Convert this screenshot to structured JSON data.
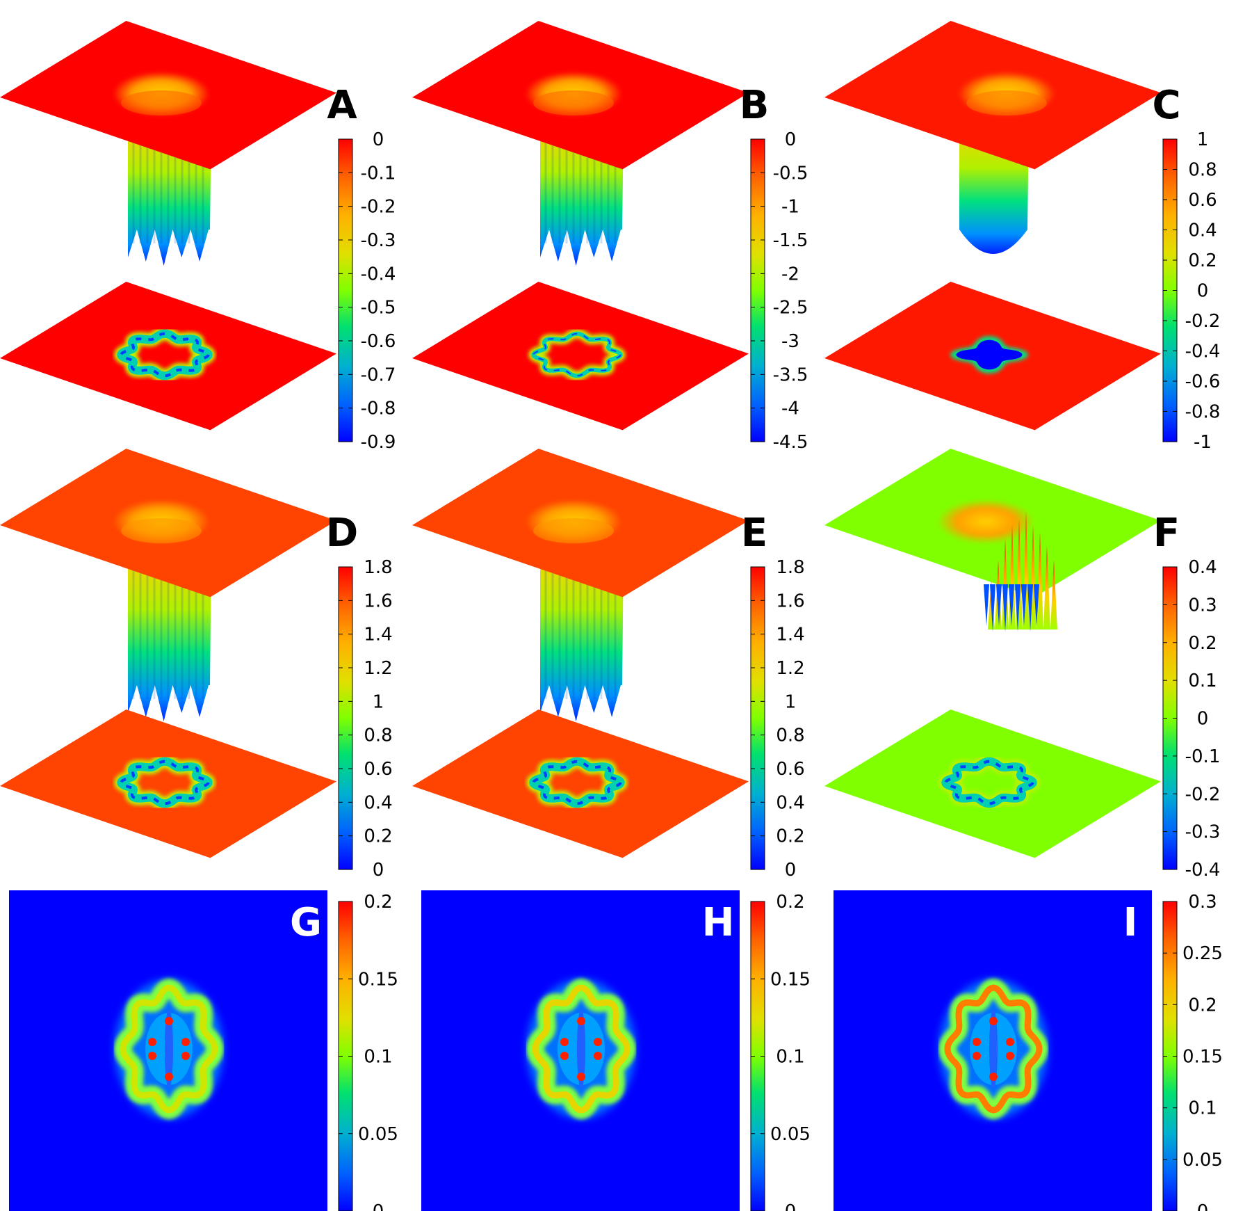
{
  "chart_data": [
    {
      "type": "surface",
      "panel": "A",
      "colorbar": {
        "min": -0.9,
        "max": 0,
        "ticks": [
          "0",
          "-0.1",
          "-0.2",
          "-0.3",
          "-0.4",
          "-0.5",
          "-0.6",
          "-0.7",
          "-0.8",
          "-0.9"
        ]
      },
      "surface": {
        "base_level": 0.0,
        "feature": "well",
        "floor": -0.9,
        "ring": "scalloped"
      }
    },
    {
      "type": "surface",
      "panel": "B",
      "colorbar": {
        "min": -4.5,
        "max": 0,
        "ticks": [
          "0",
          "-0.5",
          "-1",
          "-1.5",
          "-2",
          "-2.5",
          "-3",
          "-3.5",
          "-4",
          "-4.5"
        ]
      },
      "surface": {
        "base_level": 0.0,
        "feature": "well",
        "floor": -4.5,
        "ring": "thin-scalloped"
      }
    },
    {
      "type": "surface",
      "panel": "C",
      "colorbar": {
        "min": -1,
        "max": 1,
        "ticks": [
          "1",
          "0.8",
          "0.6",
          "0.4",
          "0.2",
          "0",
          "-0.2",
          "-0.4",
          "-0.6",
          "-0.8",
          "-1"
        ]
      },
      "surface": {
        "base_level": 0.94,
        "feature": "well",
        "floor": -1,
        "ring": "filled-cross"
      }
    },
    {
      "type": "surface",
      "panel": "D",
      "colorbar": {
        "min": 0,
        "max": 1.8,
        "ticks": [
          "1.8",
          "1.6",
          "1.4",
          "1.2",
          "1",
          "0.8",
          "0.6",
          "0.4",
          "0.2",
          "0"
        ]
      },
      "surface": {
        "base_level": 1.65,
        "feature": "well",
        "floor": 0,
        "ring": "scalloped"
      }
    },
    {
      "type": "surface",
      "panel": "E",
      "colorbar": {
        "min": 0,
        "max": 1.8,
        "ticks": [
          "1.8",
          "1.6",
          "1.4",
          "1.2",
          "1",
          "0.8",
          "0.6",
          "0.4",
          "0.2",
          "0"
        ]
      },
      "surface": {
        "base_level": 1.65,
        "feature": "well",
        "floor": 0,
        "ring": "scalloped"
      }
    },
    {
      "type": "surface",
      "panel": "F",
      "colorbar": {
        "min": -0.4,
        "max": 0.4,
        "ticks": [
          "0.4",
          "0.3",
          "0.2",
          "0.1",
          "0",
          "-0.1",
          "-0.2",
          "-0.3",
          "-0.4"
        ]
      },
      "surface": {
        "base_level": 0.0,
        "feature": "spikes",
        "peak": 0.4,
        "floor": -0.4,
        "ring": "scalloped"
      }
    },
    {
      "type": "heatmap",
      "panel": "G",
      "colorbar": {
        "min": 0,
        "max": 0.2,
        "ticks": [
          "0.2",
          "0.15",
          "0.1",
          "0.05",
          "0"
        ]
      },
      "pattern": {
        "background": 0,
        "ring": 0.12,
        "hotspots": 0.2
      }
    },
    {
      "type": "heatmap",
      "panel": "H",
      "colorbar": {
        "min": 0,
        "max": 0.2,
        "ticks": [
          "0.2",
          "0.15",
          "0.1",
          "0.05",
          "0"
        ]
      },
      "pattern": {
        "background": 0,
        "ring": 0.13,
        "hotspots": 0.2
      }
    },
    {
      "type": "heatmap",
      "panel": "I",
      "colorbar": {
        "min": 0,
        "max": 0.3,
        "ticks": [
          "0.3",
          "0.25",
          "0.2",
          "0.15",
          "0.1",
          "0.05",
          "0"
        ]
      },
      "pattern": {
        "background": 0,
        "ring": 0.25,
        "hotspots": 0.3
      }
    }
  ],
  "colors": {
    "jet": [
      "#0000ff",
      "#0080ff",
      "#00c0c0",
      "#00e060",
      "#80ff00",
      "#e0e000",
      "#ffc000",
      "#ff8000",
      "#ff2000",
      "#ff0000"
    ]
  }
}
